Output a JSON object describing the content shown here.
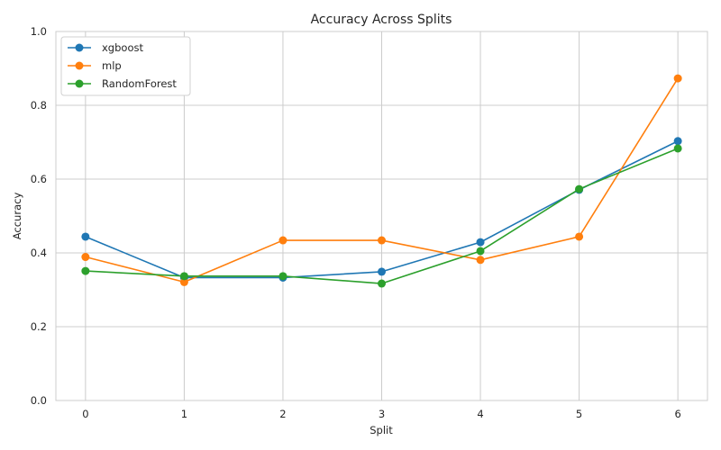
{
  "chart_data": {
    "type": "line",
    "title": "Accuracy Across Splits",
    "xlabel": "Split",
    "ylabel": "Accuracy",
    "x": [
      0,
      1,
      2,
      3,
      4,
      5,
      6
    ],
    "xticks": [
      "0",
      "1",
      "2",
      "3",
      "4",
      "5",
      "6"
    ],
    "ylim": [
      0.0,
      1.0
    ],
    "yticks": [
      "0.0",
      "0.2",
      "0.4",
      "0.6",
      "0.8",
      "1.0"
    ],
    "grid": true,
    "legend_position": "top-left",
    "series": [
      {
        "name": "xgboost",
        "color": "#1f77b4",
        "values": [
          0.444,
          0.333,
          0.333,
          0.349,
          0.429,
          0.571,
          0.703
        ]
      },
      {
        "name": "mlp",
        "color": "#ff7f0e",
        "values": [
          0.389,
          0.321,
          0.434,
          0.434,
          0.381,
          0.444,
          0.873
        ]
      },
      {
        "name": "RandomForest",
        "color": "#2ca02c",
        "values": [
          0.351,
          0.337,
          0.337,
          0.317,
          0.405,
          0.573,
          0.683
        ]
      }
    ]
  }
}
